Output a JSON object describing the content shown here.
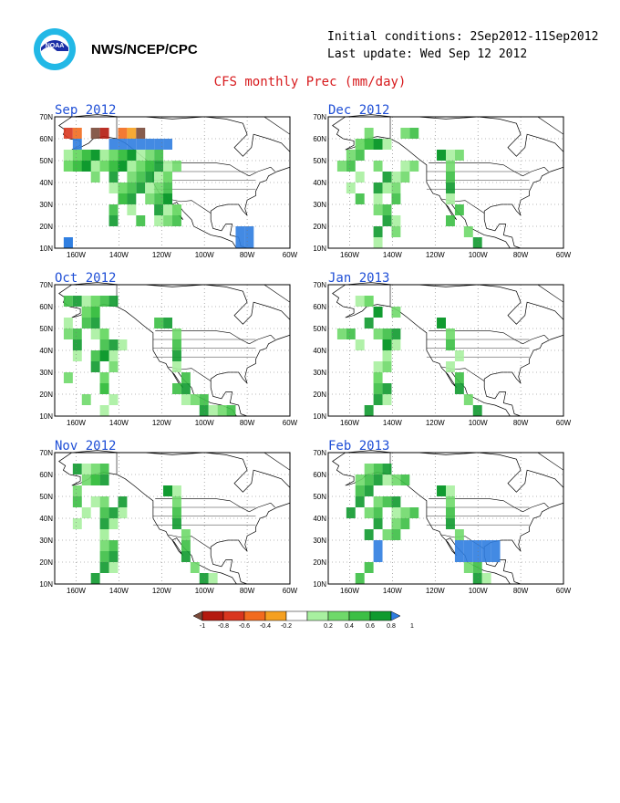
{
  "header": {
    "org": "NWS/NCEP/CPC",
    "logo_icon": "noaa-logo-icon",
    "initial_conditions": "Initial conditions: 2Sep2012-11Sep2012",
    "last_update": "Last update: Wed Sep 12 2012",
    "title": "CFS monthly Prec (mm/day)"
  },
  "axes": {
    "lat_labels": [
      "70N",
      "60N",
      "50N",
      "40N",
      "30N",
      "20N",
      "10N"
    ],
    "lon_labels": [
      "160W",
      "140W",
      "120W",
      "100W",
      "80W",
      "60W"
    ]
  },
  "panels": [
    {
      "title": "Sep 2012",
      "anomaly": [
        [
          "D",
          1,
          7,
          3,
          4,
          2,
          1,
          2
        ],
        [
          "B",
          2,
          6,
          1,
          7,
          6,
          2,
          1,
          1
        ],
        [
          "G",
          3,
          5,
          1,
          7,
          5,
          1,
          8,
          1,
          2,
          3,
          4,
          1,
          2,
          2
        ],
        [
          "G",
          4,
          4,
          1,
          3,
          5,
          1,
          10,
          3,
          11,
          1,
          1,
          1,
          3,
          1
        ],
        [
          "G",
          5,
          12,
          1,
          10,
          3,
          6,
          1,
          8,
          2,
          4,
          1
        ],
        [
          "G",
          6,
          12,
          1,
          9,
          3,
          6,
          2,
          7,
          2
        ],
        [
          "G",
          7,
          12,
          1,
          10,
          3,
          7,
          1,
          7,
          2
        ],
        [
          "G",
          8,
          13,
          1,
          11,
          3,
          6,
          1,
          8,
          1
        ],
        [
          "G",
          9,
          13,
          1,
          11,
          2,
          6,
          1,
          9,
          1
        ],
        [
          "B",
          10,
          20,
          2
        ],
        [
          "B",
          11,
          20,
          2,
          1,
          1,
          1,
          1
        ]
      ]
    },
    {
      "title": "Dec 2012",
      "anomaly": [
        [
          "G",
          1,
          8,
          2,
          4,
          1
        ],
        [
          "G",
          2,
          3,
          3,
          3,
          1,
          4,
          3
        ],
        [
          "G",
          3,
          12,
          1,
          12,
          3,
          2,
          2
        ],
        [
          "G",
          4,
          13,
          1,
          8,
          2,
          5,
          1,
          1,
          2,
          1
        ],
        [
          "G",
          5,
          13,
          1,
          7,
          2,
          6,
          1,
          3,
          1
        ],
        [
          "G",
          6,
          13,
          1,
          6,
          2,
          5,
          2,
          2,
          1
        ],
        [
          "G",
          7,
          13,
          1,
          7,
          1,
          5,
          1,
          3,
          1
        ],
        [
          "G",
          8,
          14,
          1,
          5,
          1,
          6,
          1
        ],
        [
          "G",
          9,
          13,
          1,
          6,
          1,
          7,
          1
        ],
        [
          "G",
          10,
          15,
          1,
          5,
          1,
          7,
          1
        ],
        [
          "G",
          11,
          16,
          1,
          5,
          1
        ]
      ]
    },
    {
      "title": "Oct 2012",
      "anomaly": [
        [
          "G",
          1,
          1,
          4,
          4,
          3
        ],
        [
          "G",
          2,
          3,
          2,
          3,
          2,
          3,
          1
        ],
        [
          "G",
          3,
          12,
          1,
          1,
          1,
          11,
          1,
          3,
          2
        ],
        [
          "G",
          4,
          13,
          1,
          1,
          1,
          5,
          1,
          4,
          2,
          2,
          1
        ],
        [
          "G",
          5,
          13,
          1,
          6,
          2,
          5,
          1,
          2,
          1
        ],
        [
          "G",
          6,
          13,
          1,
          5,
          2,
          4,
          2,
          2,
          1
        ],
        [
          "G",
          7,
          13,
          1,
          6,
          1,
          4,
          1
        ],
        [
          "G",
          8,
          14,
          1,
          5,
          1,
          5,
          1,
          1,
          1
        ],
        [
          "G",
          9,
          13,
          2,
          5,
          1,
          5,
          1
        ],
        [
          "G",
          10,
          14,
          3,
          3,
          1,
          6,
          1
        ],
        [
          "G",
          11,
          16,
          4,
          5,
          1
        ]
      ]
    },
    {
      "title": "Jan 2013",
      "anomaly": [
        [
          "G",
          1,
          3,
          2,
          4,
          1
        ],
        [
          "G",
          2,
          5,
          1,
          5,
          1,
          7,
          1
        ],
        [
          "G",
          3,
          12,
          1,
          12,
          1,
          4,
          1
        ],
        [
          "G",
          4,
          13,
          1,
          6,
          2,
          5,
          1,
          1,
          1,
          2,
          1
        ],
        [
          "G",
          5,
          13,
          1,
          6,
          2,
          6,
          1,
          3,
          1
        ],
        [
          "G",
          6,
          14,
          1,
          6,
          1,
          6,
          1
        ],
        [
          "G",
          7,
          13,
          1,
          6,
          1,
          5,
          1
        ],
        [
          "G",
          8,
          14,
          1,
          5,
          1,
          5,
          1
        ],
        [
          "G",
          9,
          14,
          1,
          6,
          1,
          5,
          1
        ],
        [
          "G",
          10,
          15,
          1,
          6,
          1,
          5,
          1
        ],
        [
          "G",
          11,
          16,
          1,
          4,
          1
        ]
      ]
    },
    {
      "title": "Nov 2012",
      "anomaly": [
        [
          "G",
          1,
          2,
          3,
          5,
          1
        ],
        [
          "G",
          2,
          3,
          2,
          4,
          2
        ],
        [
          "G",
          3,
          12,
          1,
          12,
          2,
          2,
          1
        ],
        [
          "G",
          4,
          13,
          1,
          7,
          1,
          4,
          2,
          2,
          1
        ],
        [
          "G",
          5,
          13,
          1,
          6,
          2,
          5,
          1,
          3,
          1
        ],
        [
          "G",
          6,
          13,
          1,
          6,
          1,
          5,
          2,
          2,
          1
        ],
        [
          "G",
          7,
          14,
          1,
          5,
          1,
          5,
          1
        ],
        [
          "G",
          8,
          14,
          1,
          5,
          1,
          6,
          1
        ],
        [
          "G",
          9,
          14,
          1,
          6,
          1,
          5,
          1
        ],
        [
          "G",
          10,
          15,
          1,
          5,
          1,
          6,
          1
        ],
        [
          "G",
          11,
          16,
          2,
          4,
          1
        ]
      ]
    },
    {
      "title": "Feb 2013",
      "anomaly": [
        [
          "G",
          1,
          5,
          2,
          4,
          1
        ],
        [
          "G",
          2,
          6,
          3,
          3,
          2,
          5,
          1
        ],
        [
          "G",
          3,
          12,
          1,
          12,
          2,
          3,
          2
        ],
        [
          "G",
          4,
          13,
          1,
          6,
          2,
          5,
          1,
          3,
          1
        ],
        [
          "G",
          5,
          13,
          1,
          7,
          3,
          4,
          2,
          2,
          1
        ],
        [
          "G",
          6,
          13,
          1,
          7,
          2,
          5,
          1
        ],
        [
          "G",
          7,
          14,
          1,
          6,
          2,
          4,
          1
        ],
        [
          "B",
          8,
          14,
          5,
          5,
          1
        ],
        [
          "B",
          9,
          14,
          5,
          5,
          1
        ],
        [
          "G",
          10,
          15,
          2,
          4,
          1
        ],
        [
          "G",
          11,
          16,
          2,
          3,
          1
        ]
      ]
    }
  ],
  "legend": {
    "labels": [
      "-1",
      "-0.8",
      "-0.6",
      "-0.4",
      "-0.2",
      "0.2",
      "0.4",
      "0.6",
      "0.8",
      "1"
    ],
    "colors": [
      "#7a4a3a",
      "#b41a0f",
      "#d9361e",
      "#f26b1e",
      "#f5a020",
      "#ffffff",
      "#a8f0a0",
      "#6fd96a",
      "#3cbf45",
      "#0f9a2f",
      "#2f7de0"
    ]
  },
  "colors": {
    "land": "#ffffff",
    "frame": "#000000",
    "grid": "#777777",
    "title_red": "#d7191c",
    "panel_title_blue": "#1f4fd6"
  }
}
